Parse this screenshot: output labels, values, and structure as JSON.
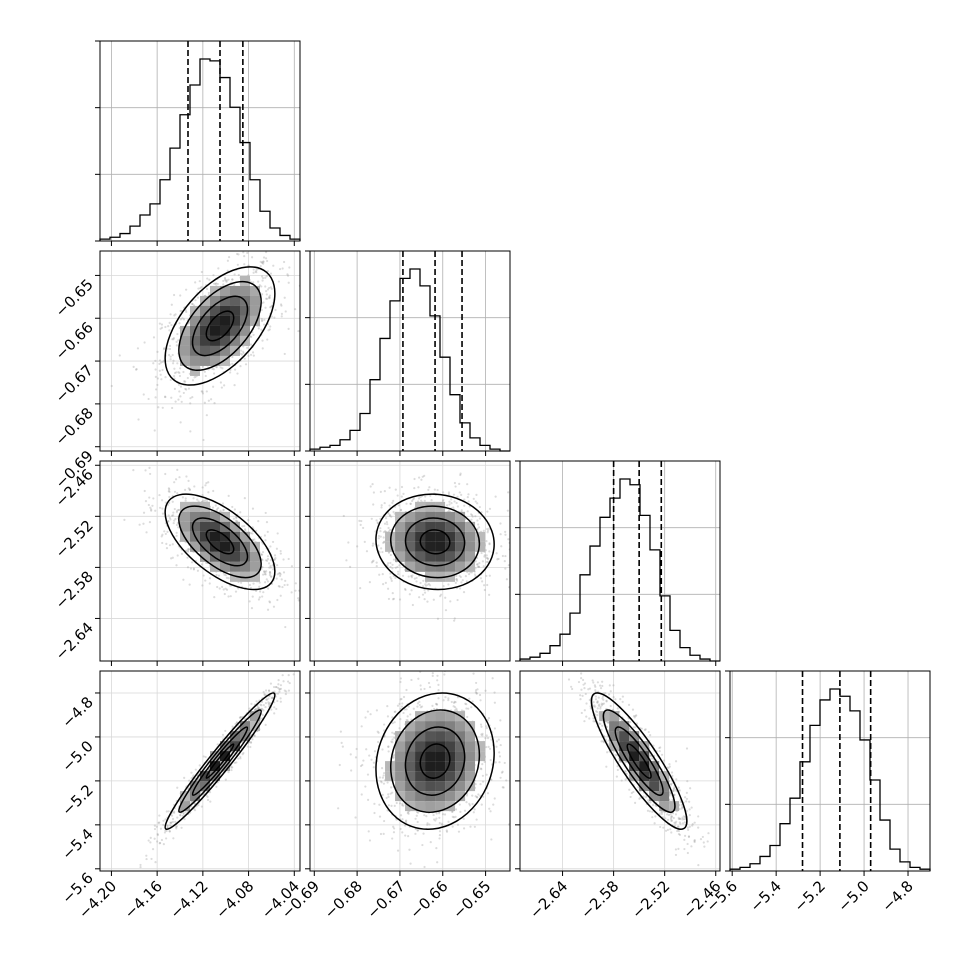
{
  "chart_data": {
    "type": "corner",
    "title": "",
    "parameters": [
      {
        "name": "",
        "median": -4.105,
        "q16": -4.133,
        "q84": -4.085,
        "range": [
          -4.21,
          -4.035
        ],
        "ticks": [
          -4.2,
          -4.16,
          -4.12,
          -4.08,
          -4.04
        ],
        "tick_labels": [
          "−4.20",
          "−4.16",
          "−4.12",
          "−4.08",
          "−4.04"
        ]
      },
      {
        "name": "",
        "median": -0.6618,
        "q16": -0.6693,
        "q84": -0.6555,
        "range": [
          -0.691,
          -0.6443
        ],
        "ticks": [
          -0.69,
          -0.68,
          -0.67,
          -0.66,
          -0.65
        ],
        "tick_labels": [
          "−0.69",
          "−0.68",
          "−0.67",
          "−0.66",
          "−0.65"
        ]
      },
      {
        "name": "",
        "median": -2.55,
        "q16": -2.58,
        "q84": -2.524,
        "range": [
          -2.69,
          -2.455
        ],
        "ticks": [
          -2.64,
          -2.58,
          -2.52,
          -2.46
        ],
        "tick_labels": [
          "−2.64",
          "−2.58",
          "−2.52",
          "−2.46"
        ]
      },
      {
        "name": "",
        "median": -5.11,
        "q16": -5.28,
        "q84": -4.97,
        "range": [
          -5.61,
          -4.7
        ],
        "ticks": [
          -5.6,
          -5.4,
          -5.2,
          -5.0,
          -4.8
        ],
        "tick_labels": [
          "−5.6",
          "−5.4",
          "−5.2",
          "−5.0",
          "−4.8"
        ]
      }
    ],
    "histograms_1d": [
      [
        1,
        2,
        4,
        8,
        14,
        20,
        33,
        50,
        68,
        84,
        98,
        97,
        88,
        72,
        53,
        33,
        16,
        7,
        3,
        1
      ],
      [
        1,
        2,
        3,
        6,
        11,
        20,
        38,
        60,
        80,
        92,
        97,
        88,
        72,
        50,
        30,
        15,
        7,
        3,
        1,
        0
      ],
      [
        1,
        2,
        4,
        8,
        14,
        25,
        45,
        60,
        75,
        85,
        95,
        92,
        76,
        58,
        34,
        16,
        7,
        3,
        1,
        0
      ],
      [
        1,
        2,
        4,
        8,
        14,
        26,
        40,
        60,
        80,
        94,
        100,
        96,
        88,
        72,
        50,
        28,
        12,
        5,
        2,
        1
      ]
    ],
    "correlations": {
      "1-0": 0.55,
      "2-0": -0.62,
      "2-1": -0.05,
      "3-0": 0.97,
      "3-1": 0.12,
      "3-2": -0.88
    },
    "contour_levels": [
      0.5,
      1.0,
      1.5,
      2.0
    ],
    "grid": true,
    "legend": "none"
  }
}
